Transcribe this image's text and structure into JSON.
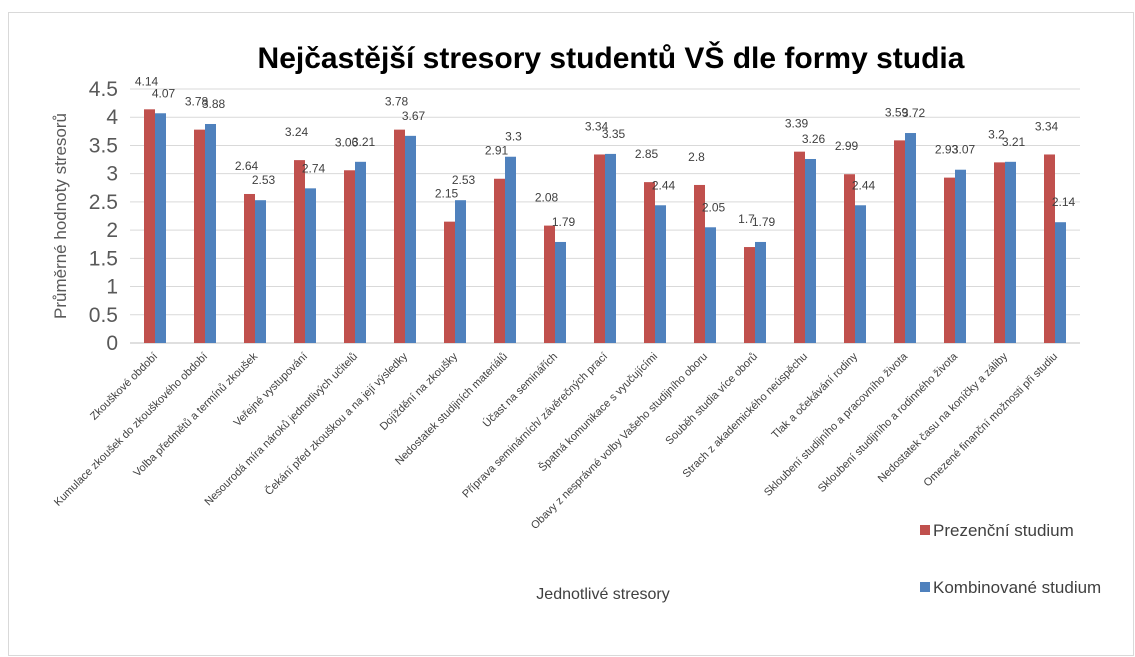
{
  "chart_data": {
    "type": "bar",
    "title": "Nejčastější stresory studentů VŠ dle formy studia",
    "x_label": "Jednotlivé stresory",
    "y_label": "Průměrné hodnoty stresorů",
    "categories": [
      "Zkouškové období",
      "Kumulace zkoušek do zkouškového období",
      "Volba předmětů a termínů zkoušek",
      "Veřejné vystupování",
      "Nesourodá míra nároků jednotlivých učitelů",
      "Čekání před zkouškou a na její výsledky",
      "Dojíždění na zkoušky",
      "Nedostatek studijních materiálů",
      "Účast na seminářích",
      "Příprava seminárních/ závěrečných prací",
      "Špatná komunikace s vyučujícími",
      "Obavy z nesprávné volby Vašeho studijního oboru",
      "Souběh studia více oborů",
      "Strach z akademického neúspěchu",
      "Tlak a očekávání rodiny",
      "Skloubení studijního a pracovního života",
      "Skloubení studijního a rodinného života",
      "Nedostatek času na koníčky a záliby",
      "Omezené finanční možnosti při studiu"
    ],
    "series": [
      {
        "name": "Prezenční studium",
        "color": "#c0504d",
        "values": [
          4.14,
          3.78,
          2.64,
          3.24,
          3.06,
          3.78,
          2.15,
          2.91,
          2.08,
          3.34,
          2.85,
          2.8,
          1.7,
          3.39,
          2.99,
          3.59,
          2.93,
          3.2,
          3.34
        ]
      },
      {
        "name": "Kombinované studium",
        "color": "#4f81bd",
        "values": [
          4.07,
          3.88,
          2.53,
          2.74,
          3.21,
          3.67,
          2.53,
          3.3,
          1.79,
          3.35,
          2.44,
          2.05,
          1.79,
          3.26,
          2.44,
          3.72,
          3.07,
          3.21,
          2.14
        ]
      }
    ],
    "ylim": [
      0,
      4.5
    ],
    "yticks": [
      0,
      0.5,
      1,
      1.5,
      2,
      2.5,
      3,
      3.5,
      4,
      4.5
    ],
    "grid": true,
    "legend": "bottom-right"
  }
}
